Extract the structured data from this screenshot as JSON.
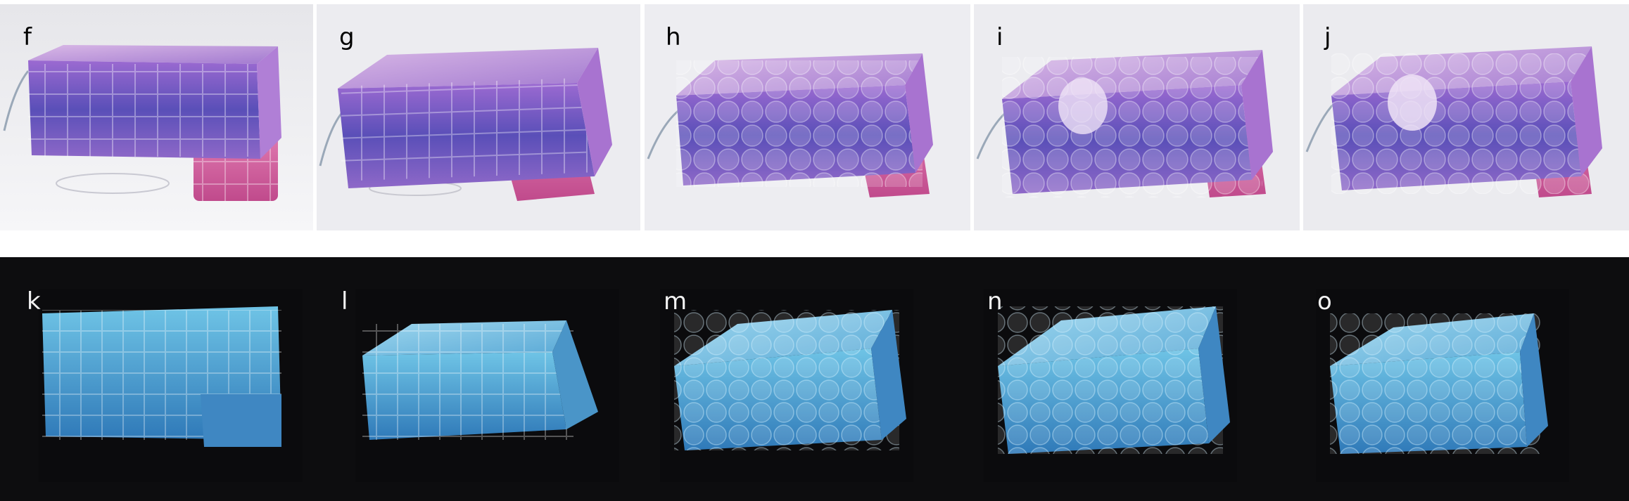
{
  "figure": {
    "top_row": {
      "panels": [
        {
          "id": "f",
          "label": "f"
        },
        {
          "id": "g",
          "label": "g"
        },
        {
          "id": "h",
          "label": "h"
        },
        {
          "id": "i",
          "label": "i"
        },
        {
          "id": "j",
          "label": "j"
        }
      ]
    },
    "bottom_row": {
      "panels": [
        {
          "id": "k",
          "label": "k"
        },
        {
          "id": "l",
          "label": "l"
        },
        {
          "id": "m",
          "label": "m"
        },
        {
          "id": "n",
          "label": "n"
        },
        {
          "id": "o",
          "label": "o"
        }
      ]
    }
  },
  "colors": {
    "top_background": "#ffffff",
    "bottom_background": "#0d0d0f",
    "purple": "#8a5cc0",
    "magenta": "#d0559a",
    "blue_purple": "#5b59b8",
    "cyan": "#59b7dc",
    "deep_blue": "#2a6fb0"
  }
}
